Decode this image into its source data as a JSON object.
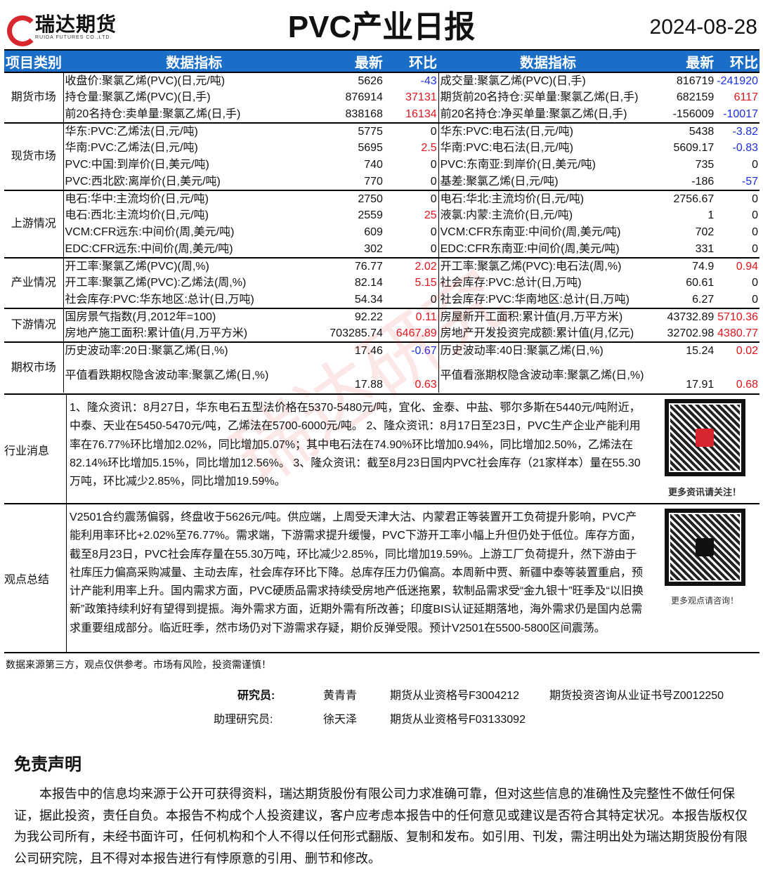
{
  "header": {
    "logo_cn": "瑞达期货",
    "logo_en": "RUIDA FUTURES CO.,LTD.",
    "title": "PVC产业日报",
    "date": "2024-08-28",
    "brand_color": "#d7262d"
  },
  "table": {
    "columns": [
      "项目类别",
      "数据指标",
      "最新",
      "环比",
      "数据指标",
      "最新",
      "环比"
    ],
    "header_color": "#1a6ec8",
    "sections": [
      {
        "category": "期货市场",
        "rows": [
          [
            "收盘价:聚氯乙烯(PVC)(日,元/吨)",
            "5626",
            "-43",
            "成交量:聚氯乙烯(PVC)(日,手)",
            "816719",
            "-241920"
          ],
          [
            "持仓量:聚氯乙烯(PVC)(日,手)",
            "876914",
            "37131",
            "期货前20名持仓:买单量:聚氯乙烯(日,手)",
            "682159",
            "6117"
          ],
          [
            "前20名持仓:卖单量:聚氯乙烯(日,手)",
            "838168",
            "16134",
            "前20名持仓:净买单量:聚氯乙烯(日,手)",
            "-156009",
            "-10017"
          ]
        ]
      },
      {
        "category": "现货市场",
        "rows": [
          [
            "华东:PVC:乙烯法(日,元/吨)",
            "5775",
            "0",
            "华东:PVC:电石法(日,元/吨)",
            "5438",
            "-3.82"
          ],
          [
            "华南:PVC:乙烯法(日,元/吨)",
            "5695",
            "2.5",
            "华南:PVC:电石法(日,元/吨)",
            "5609.17",
            "-0.83"
          ],
          [
            "PVC:中国:到岸价(日,美元/吨)",
            "740",
            "0",
            "PVC:东南亚:到岸价(日,美元/吨)",
            "735",
            "0"
          ],
          [
            "PVC:西北欧:离岸价(日,美元/吨)",
            "770",
            "0",
            "基差:聚氯乙烯(日,元/吨)",
            "-186",
            "-57"
          ]
        ]
      },
      {
        "category": "上游情况",
        "rows": [
          [
            "电石:华中:主流均价(日,元/吨)",
            "2750",
            "0",
            "电石:华北:主流均价(日,元/吨)",
            "2756.67",
            "0"
          ],
          [
            "电石:西北:主流均价(日,元/吨)",
            "2559",
            "25",
            "液氯:内蒙:主流价(日,元/吨)",
            "1",
            "0"
          ],
          [
            "VCM:CFR远东:中间价(周,美元/吨)",
            "609",
            "0",
            "VCM:CFR东南亚:中间价(周,美元/吨)",
            "702",
            "0"
          ],
          [
            "EDC:CFR远东:中间价(周,美元/吨)",
            "302",
            "0",
            "EDC:CFR东南亚:中间价(周,美元/吨)",
            "331",
            "0"
          ]
        ]
      },
      {
        "category": "产业情况",
        "rows": [
          [
            "开工率:聚氯乙烯(PVC)(周,%)",
            "76.77",
            "2.02",
            "开工率:聚氯乙烯(PVC):电石法(周,%)",
            "74.9",
            "0.94"
          ],
          [
            "开工率:聚氯乙烯(PVC):乙烯法(周,%)",
            "82.14",
            "5.15",
            "社会库存:PVC:总计(日,万吨)",
            "60.61",
            "0"
          ],
          [
            "社会库存:PVC:华东地区:总计(日,万吨)",
            "54.34",
            "0",
            "社会库存:PVC:华南地区:总计(日,万吨)",
            "6.27",
            "0"
          ]
        ]
      },
      {
        "category": "下游情况",
        "rows": [
          [
            "国房景气指数(月,2012年=100)",
            "92.22",
            "0.11",
            "房屋新开工面积:累计值(月,万平方米)",
            "43732.89",
            "5710.36"
          ],
          [
            "房地产施工面积:累计值(月,万平方米)",
            "703285.74",
            "6467.89",
            "房地产开发投资完成额:累计值(月,亿元)",
            "32702.98",
            "4380.77"
          ]
        ]
      },
      {
        "category": "期权市场",
        "rows": [
          [
            "历史波动率:20日:聚氯乙烯(日,%)",
            "17.46",
            "-0.67",
            "历史波动率:40日:聚氯乙烯(日,%)",
            "15.24",
            "0.02"
          ],
          [
            "平值看跌期权隐含波动率:聚氯乙烯(日,%)",
            "17.88",
            "0.63",
            "平值看涨期权隐含波动率:聚氯乙烯(日,%)",
            "17.91",
            "0.68"
          ]
        ]
      }
    ]
  },
  "news": {
    "label": "行业消息",
    "text": "1、隆众资讯：8月27日，华东电石五型法价格在5370-5480元/吨，宜化、金泰、中盐、鄂尔多斯在5440元/吨附近，中泰、天业在5450-5470元/吨，乙烯法在5700-6000元/吨。 2、隆众资讯：8月17日至23日，PVC生产企业产能利用率在76.77%环比增加2.02%，同比增加5.07%；其中电石法在74.90%环比增加0.94%，同比增加2.50%，乙烯法在82.14%环比增加5.15%，同比增加12.56%。 3、隆众资讯：截至8月23日国内PVC社会库存（21家样本）量在55.30万吨，环比减少2.85%，同比增加19.59%。",
    "qr_caption": "更多资讯请关注！"
  },
  "summary": {
    "label": "观点总结",
    "text": "V2501合约震荡偏弱，终盘收于5626元/吨。供应端，上周受天津大沽、内蒙君正等装置开工负荷提升影响，PVC产能利用率环比+2.02%至76.77%。需求端，下游需求提升缓慢，PVC下游开工率小幅上升但仍处于低位。库存方面，截至8月23日，PVC社会库存量在55.30万吨，环比减少2.85%，同比增加19.59%。上游工厂负荷提升，然下游由于社库压力偏高采购减量、主动去库，社会库存环比下降。总库存压力仍偏高。本周新中贾、新疆中泰等装置重启，预计产能利用率上升。国内需求方面，PVC硬质品需求持续受房地产低迷拖累，软制品需求受“金九银十”旺季及“以旧换新”政策持续利好有望得到提振。海外需求方面，近期外需有所改善；印度BIS认证延期落地，海外需求仍是国内总需求重要组成部分。临近旺季，然市场仍对下游需求存疑，期价反弹受限。预计V2501在5500-5800区间震荡。",
    "qr_caption": "更多观点请咨询！"
  },
  "footer": {
    "note": "数据来源第三方，观点仅供参考。市场有风险，投资需谨慎！",
    "researcher_label": "研究员:",
    "researcher": "黄青青",
    "researcher_cert": "期货从业资格号F3004212",
    "researcher_cert2": "期货投资咨询从业证书号Z0012250",
    "assistant_label": "助理研究员:",
    "assistant": "徐天泽",
    "assistant_cert": "期货从业资格号F03133092"
  },
  "disclaimer": {
    "title": "免责声明",
    "text": "本报告中的信息均来源于公开可获得资料，瑞达期货股份有限公司力求准确可靠，但对这些信息的准确性及完整性不做任何保证，据此投资，责任自负。本报告不构成个人投资建议，客户应考虑本报告中的任何意见或建议是否符合其特定状况。本报告版权仅为我公司所有，未经书面许可，任何机构和个人不得以任何形式翻版、复制和发布。如引用、刊发，需注明出处为瑞达期货股份有限公司研究院，且不得对本报告进行有悖原意的引用、删节和修改。"
  },
  "colors": {
    "up": "#e3141c",
    "down": "#1c2fe0"
  }
}
